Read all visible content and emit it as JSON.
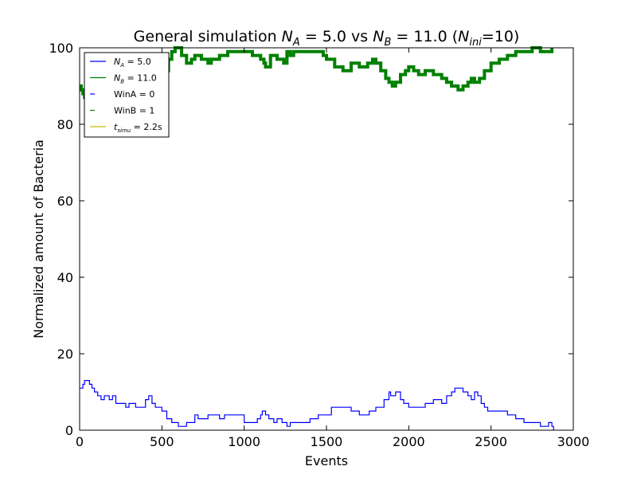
{
  "chart_data": {
    "type": "line",
    "title": "General simulation NA = 5.0 vs NB = 11.0 (Nini=10)",
    "title_parts": {
      "prefix": "General simulation ",
      "a_sym": "N",
      "a_sub": "A",
      "a_val": " = 5.0 vs ",
      "b_sym": "N",
      "b_sub": "B",
      "b_val": " = 11.0 (",
      "ini_sym": "N",
      "ini_sub": "ini",
      "ini_val": "=10)"
    },
    "xlabel": "Events",
    "ylabel": "Normalized amount of Bacteria",
    "xlim": [
      0,
      3000
    ],
    "ylim": [
      0,
      100
    ],
    "xticks": [
      0,
      500,
      1000,
      1500,
      2000,
      2500,
      3000
    ],
    "yticks": [
      0,
      20,
      40,
      60,
      80,
      100
    ],
    "grid": false,
    "legend_position": "top-left",
    "legend": [
      {
        "sym": "N",
        "sub": "A",
        "text": " = 5.0",
        "color": "#0000ff",
        "style": "solid"
      },
      {
        "sym": "N",
        "sub": "B",
        "text": " = 11.0",
        "color": "#008000",
        "style": "solid"
      },
      {
        "sym": "",
        "sub": "",
        "text": "WinA = 0",
        "color": "#0000ff",
        "style": "dash"
      },
      {
        "sym": "",
        "sub": "",
        "text": "WinB = 1",
        "color": "#008000",
        "style": "dash"
      },
      {
        "sym": "t",
        "sub": "simu",
        "text": " = 2.2s",
        "color": "#bfbf00",
        "style": "solid"
      }
    ],
    "series": [
      {
        "name": "NA = 5.0",
        "color": "#0000ff",
        "x": [
          0,
          20,
          30,
          40,
          60,
          75,
          90,
          110,
          130,
          150,
          180,
          200,
          220,
          240,
          280,
          300,
          340,
          370,
          400,
          420,
          440,
          460,
          480,
          500,
          530,
          560,
          600,
          630,
          650,
          700,
          720,
          780,
          850,
          880,
          1000,
          1050,
          1080,
          1100,
          1110,
          1130,
          1150,
          1180,
          1200,
          1230,
          1260,
          1280,
          1300,
          1400,
          1450,
          1530,
          1600,
          1650,
          1700,
          1760,
          1800,
          1850,
          1880,
          1890,
          1920,
          1950,
          1970,
          2000,
          2050,
          2100,
          2150,
          2200,
          2230,
          2260,
          2280,
          2300,
          2330,
          2360,
          2380,
          2400,
          2420,
          2440,
          2460,
          2480,
          2520,
          2600,
          2650,
          2700,
          2800,
          2850,
          2870,
          2880
        ],
        "y": [
          11,
          12,
          13,
          13,
          12,
          11,
          10,
          9,
          8,
          9,
          8,
          9,
          7,
          7,
          6,
          7,
          6,
          6,
          8,
          9,
          7,
          6,
          6,
          5,
          3,
          2,
          1,
          1,
          2,
          4,
          3,
          4,
          3,
          4,
          2,
          2,
          3,
          4,
          5,
          4,
          3,
          2,
          3,
          2,
          1,
          2,
          2,
          3,
          4,
          6,
          6,
          5,
          4,
          5,
          6,
          8,
          10,
          9,
          10,
          8,
          7,
          6,
          6,
          7,
          8,
          7,
          9,
          10,
          11,
          11,
          10,
          9,
          8,
          10,
          9,
          7,
          6,
          5,
          5,
          4,
          3,
          2,
          1,
          2,
          1,
          0
        ]
      },
      {
        "name": "NB = 11.0",
        "color": "#008000",
        "x": [
          0,
          10,
          20,
          30,
          60,
          100,
          150,
          200,
          300,
          400,
          450,
          500,
          520,
          540,
          560,
          580,
          620,
          650,
          680,
          700,
          740,
          780,
          800,
          850,
          900,
          1000,
          1050,
          1100,
          1120,
          1130,
          1160,
          1200,
          1240,
          1260,
          1280,
          1300,
          1350,
          1400,
          1450,
          1480,
          1500,
          1550,
          1600,
          1650,
          1700,
          1750,
          1780,
          1800,
          1830,
          1860,
          1880,
          1900,
          1920,
          1950,
          1980,
          2000,
          2030,
          2060,
          2100,
          2150,
          2200,
          2230,
          2260,
          2300,
          2330,
          2360,
          2380,
          2400,
          2430,
          2460,
          2500,
          2550,
          2600,
          2650,
          2700,
          2750,
          2800,
          2850,
          2870
        ],
        "y": [
          90,
          89,
          88,
          87,
          86,
          85,
          84,
          84,
          84,
          84,
          84,
          85,
          94,
          97,
          99,
          100,
          98,
          96,
          97,
          98,
          97,
          96,
          97,
          98,
          99,
          99,
          98,
          97,
          96,
          95,
          98,
          97,
          96,
          99,
          98,
          99,
          99,
          99,
          99,
          98,
          97,
          95,
          94,
          96,
          95,
          96,
          97,
          96,
          94,
          92,
          91,
          90,
          91,
          93,
          94,
          95,
          94,
          93,
          94,
          93,
          92,
          91,
          90,
          89,
          90,
          91,
          92,
          91,
          92,
          94,
          96,
          97,
          98,
          99,
          99,
          100,
          99,
          99,
          100
        ]
      }
    ]
  }
}
